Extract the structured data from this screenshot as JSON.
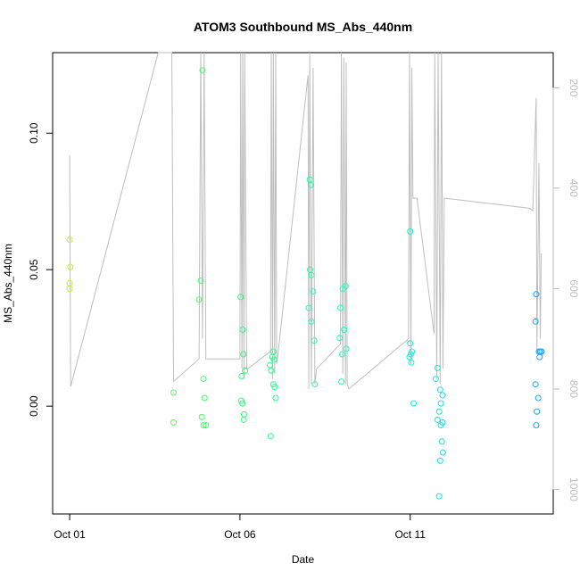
{
  "chart_data": {
    "type": "scatter",
    "title": "ATOM3 Southbound MS_Abs_440nm",
    "xlabel": "Date",
    "ylabel": "MS_Abs_440nm",
    "x_unit": "day of October",
    "xlim": [
      0.5,
      15.2
    ],
    "ylim": [
      -0.0395,
      0.1295
    ],
    "x_ticks": [
      {
        "value": 1,
        "label": "Oct 01"
      },
      {
        "value": 6,
        "label": "Oct 06"
      },
      {
        "value": 11,
        "label": "Oct 11"
      }
    ],
    "y_ticks": [
      {
        "value": 0.0,
        "label": "0.00"
      },
      {
        "value": 0.05,
        "label": "0.05"
      },
      {
        "value": 0.1,
        "label": "0.10"
      }
    ],
    "y2_ticks": [
      {
        "value": 200,
        "label": "200"
      },
      {
        "value": 400,
        "label": "400"
      },
      {
        "value": 600,
        "label": "600"
      },
      {
        "value": 800,
        "label": "800"
      },
      {
        "value": 1000,
        "label": "1000"
      }
    ],
    "y2lim": [
      1049,
      130
    ],
    "point_color_scale": [
      "#b8f233",
      "#2cff6e",
      "#14ffd9",
      "#1aa3ff"
    ],
    "line_color": "#bebebe",
    "points": [
      {
        "x": 1.0,
        "y": 0.061
      },
      {
        "x": 1.02,
        "y": 0.051
      },
      {
        "x": 1.0,
        "y": 0.045
      },
      {
        "x": 1.0,
        "y": 0.043
      },
      {
        "x": 4.05,
        "y": 0.005
      },
      {
        "x": 4.05,
        "y": -0.006
      },
      {
        "x": 4.9,
        "y": 0.123
      },
      {
        "x": 4.85,
        "y": 0.046
      },
      {
        "x": 4.8,
        "y": 0.039
      },
      {
        "x": 4.93,
        "y": 0.01
      },
      {
        "x": 4.96,
        "y": 0.003
      },
      {
        "x": 4.88,
        "y": -0.004
      },
      {
        "x": 4.93,
        "y": -0.007
      },
      {
        "x": 5.0,
        "y": -0.007
      },
      {
        "x": 6.02,
        "y": 0.04
      },
      {
        "x": 6.08,
        "y": 0.028
      },
      {
        "x": 6.1,
        "y": 0.019
      },
      {
        "x": 6.15,
        "y": 0.013
      },
      {
        "x": 6.05,
        "y": 0.011
      },
      {
        "x": 6.04,
        "y": 0.002
      },
      {
        "x": 6.07,
        "y": 0.001
      },
      {
        "x": 6.12,
        "y": -0.003
      },
      {
        "x": 6.11,
        "y": -0.005
      },
      {
        "x": 6.98,
        "y": 0.02
      },
      {
        "x": 6.95,
        "y": 0.018
      },
      {
        "x": 7.0,
        "y": 0.017
      },
      {
        "x": 6.88,
        "y": 0.015
      },
      {
        "x": 6.92,
        "y": 0.013
      },
      {
        "x": 6.98,
        "y": 0.008
      },
      {
        "x": 7.02,
        "y": 0.007
      },
      {
        "x": 7.05,
        "y": 0.003
      },
      {
        "x": 6.9,
        "y": -0.011
      },
      {
        "x": 8.05,
        "y": 0.083
      },
      {
        "x": 8.08,
        "y": 0.081
      },
      {
        "x": 8.06,
        "y": 0.05
      },
      {
        "x": 8.1,
        "y": 0.048
      },
      {
        "x": 8.15,
        "y": 0.042
      },
      {
        "x": 8.02,
        "y": 0.036
      },
      {
        "x": 8.1,
        "y": 0.031
      },
      {
        "x": 8.18,
        "y": 0.024
      },
      {
        "x": 8.2,
        "y": 0.008
      },
      {
        "x": 8.95,
        "y": 0.036
      },
      {
        "x": 9.02,
        "y": 0.043
      },
      {
        "x": 9.1,
        "y": 0.044
      },
      {
        "x": 9.06,
        "y": 0.028
      },
      {
        "x": 8.93,
        "y": 0.025
      },
      {
        "x": 9.12,
        "y": 0.021
      },
      {
        "x": 9.0,
        "y": 0.019
      },
      {
        "x": 8.98,
        "y": 0.009
      },
      {
        "x": 11.0,
        "y": 0.064
      },
      {
        "x": 11.0,
        "y": 0.023
      },
      {
        "x": 11.05,
        "y": 0.02
      },
      {
        "x": 11.02,
        "y": 0.019
      },
      {
        "x": 10.98,
        "y": 0.018
      },
      {
        "x": 11.03,
        "y": 0.016
      },
      {
        "x": 11.1,
        "y": 0.001
      },
      {
        "x": 11.8,
        "y": 0.014
      },
      {
        "x": 11.75,
        "y": 0.01
      },
      {
        "x": 11.88,
        "y": 0.006
      },
      {
        "x": 11.95,
        "y": 0.004
      },
      {
        "x": 11.9,
        "y": 0.001
      },
      {
        "x": 11.85,
        "y": -0.002
      },
      {
        "x": 11.8,
        "y": -0.005
      },
      {
        "x": 11.95,
        "y": -0.006
      },
      {
        "x": 11.9,
        "y": -0.007
      },
      {
        "x": 11.93,
        "y": -0.013
      },
      {
        "x": 11.96,
        "y": -0.017
      },
      {
        "x": 11.88,
        "y": -0.02
      },
      {
        "x": 11.85,
        "y": -0.033
      },
      {
        "x": 14.7,
        "y": 0.041
      },
      {
        "x": 14.68,
        "y": 0.031
      },
      {
        "x": 14.82,
        "y": 0.02
      },
      {
        "x": 14.78,
        "y": 0.02
      },
      {
        "x": 14.86,
        "y": 0.02
      },
      {
        "x": 14.8,
        "y": 0.018
      },
      {
        "x": 14.68,
        "y": 0.008
      },
      {
        "x": 14.76,
        "y": 0.003
      },
      {
        "x": 14.72,
        "y": -0.002
      },
      {
        "x": 14.7,
        "y": -0.007
      }
    ],
    "line_y2": [
      {
        "x": 1.0,
        "y": 335
      },
      {
        "x": 1.0,
        "y": 365
      },
      {
        "x": 1.03,
        "y": 795
      },
      {
        "x": 3.6,
        "y": 130
      },
      {
        "x": 4.0,
        "y": 130
      },
      {
        "x": 4.05,
        "y": 785
      },
      {
        "x": 4.8,
        "y": 740
      },
      {
        "x": 4.85,
        "y": 130
      },
      {
        "x": 4.9,
        "y": 700
      },
      {
        "x": 4.95,
        "y": 130
      },
      {
        "x": 5.0,
        "y": 740
      },
      {
        "x": 5.02,
        "y": 740
      },
      {
        "x": 6.0,
        "y": 740
      },
      {
        "x": 6.02,
        "y": 130
      },
      {
        "x": 6.06,
        "y": 760
      },
      {
        "x": 6.08,
        "y": 130
      },
      {
        "x": 6.12,
        "y": 780
      },
      {
        "x": 6.14,
        "y": 130
      },
      {
        "x": 6.2,
        "y": 760
      },
      {
        "x": 6.22,
        "y": 760
      },
      {
        "x": 6.9,
        "y": 725
      },
      {
        "x": 6.92,
        "y": 130
      },
      {
        "x": 6.96,
        "y": 780
      },
      {
        "x": 6.98,
        "y": 130
      },
      {
        "x": 7.02,
        "y": 770
      },
      {
        "x": 7.05,
        "y": 130
      },
      {
        "x": 7.08,
        "y": 750
      },
      {
        "x": 7.12,
        "y": 730
      },
      {
        "x": 8.0,
        "y": 175
      },
      {
        "x": 8.02,
        "y": 800
      },
      {
        "x": 8.05,
        "y": 130
      },
      {
        "x": 8.1,
        "y": 790
      },
      {
        "x": 8.15,
        "y": 160
      },
      {
        "x": 8.2,
        "y": 790
      },
      {
        "x": 8.25,
        "y": 760
      },
      {
        "x": 8.95,
        "y": 710
      },
      {
        "x": 8.98,
        "y": 130
      },
      {
        "x": 9.02,
        "y": 770
      },
      {
        "x": 9.05,
        "y": 140
      },
      {
        "x": 9.1,
        "y": 790
      },
      {
        "x": 9.12,
        "y": 150
      },
      {
        "x": 9.15,
        "y": 790
      },
      {
        "x": 9.2,
        "y": 800
      },
      {
        "x": 10.95,
        "y": 700
      },
      {
        "x": 10.98,
        "y": 130
      },
      {
        "x": 11.02,
        "y": 750
      },
      {
        "x": 11.05,
        "y": 160
      },
      {
        "x": 11.08,
        "y": 420
      },
      {
        "x": 11.2,
        "y": 420
      },
      {
        "x": 11.7,
        "y": 690
      },
      {
        "x": 11.72,
        "y": 130
      },
      {
        "x": 11.78,
        "y": 780
      },
      {
        "x": 11.82,
        "y": 130
      },
      {
        "x": 11.88,
        "y": 790
      },
      {
        "x": 11.92,
        "y": 130
      },
      {
        "x": 11.96,
        "y": 760
      },
      {
        "x": 12.0,
        "y": 420
      },
      {
        "x": 14.5,
        "y": 440
      },
      {
        "x": 14.6,
        "y": 445
      },
      {
        "x": 14.7,
        "y": 220
      },
      {
        "x": 14.72,
        "y": 730
      },
      {
        "x": 14.78,
        "y": 350
      },
      {
        "x": 14.82,
        "y": 700
      },
      {
        "x": 14.85,
        "y": 530
      }
    ]
  }
}
